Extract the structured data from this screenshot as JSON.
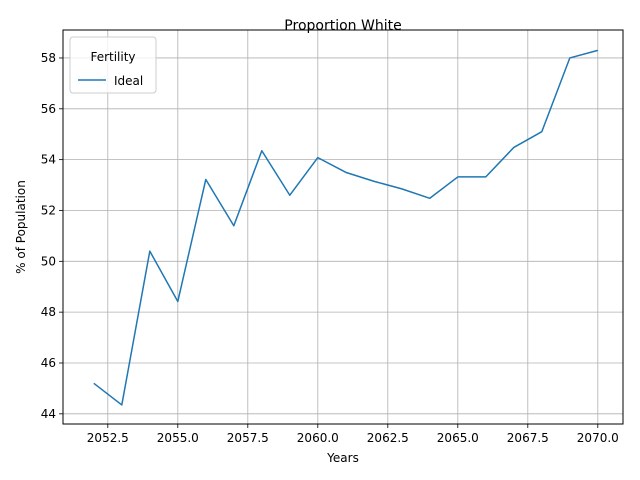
{
  "chart_data": {
    "type": "line",
    "title": "Proportion White",
    "xlabel": "Years",
    "ylabel": "% of Population",
    "xlim": [
      2050.9,
      2070.9
    ],
    "ylim": [
      43.6,
      59.1
    ],
    "x_ticks": [
      2052.5,
      2055.0,
      2057.5,
      2060.0,
      2062.5,
      2065.0,
      2067.5,
      2070.0
    ],
    "x_tick_labels": [
      "2052.5",
      "2055.0",
      "2057.5",
      "2060.0",
      "2062.5",
      "2065.0",
      "2067.5",
      "2070.0"
    ],
    "y_ticks": [
      44,
      46,
      48,
      50,
      52,
      54,
      56,
      58
    ],
    "y_tick_labels": [
      "44",
      "46",
      "48",
      "50",
      "52",
      "54",
      "56",
      "58"
    ],
    "grid": true,
    "legend": {
      "title": "Fertility",
      "placement": "top-left"
    },
    "colors": {
      "series": "#1f77b4",
      "grid": "#b0b0b0"
    },
    "series": [
      {
        "name": "Ideal",
        "x": [
          2052,
          2053,
          2054,
          2055,
          2056,
          2057,
          2058,
          2059,
          2060,
          2061,
          2062,
          2063,
          2064,
          2065,
          2066,
          2067,
          2068,
          2069,
          2070
        ],
        "values": [
          45.2,
          44.35,
          50.4,
          48.42,
          53.22,
          51.4,
          54.35,
          52.6,
          54.08,
          53.5,
          53.15,
          52.85,
          52.48,
          53.32,
          53.32,
          54.48,
          55.1,
          58.0,
          58.3
        ]
      }
    ]
  }
}
